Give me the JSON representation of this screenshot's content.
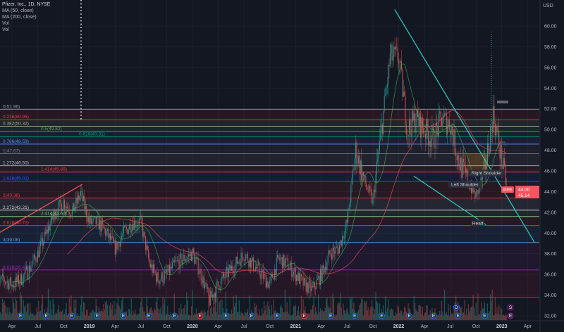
{
  "legend": {
    "symbol": "Pfizer, Inc., 1D, NYSE",
    "ma50": "MA (50, close)",
    "ma200": "MA (200, close)",
    "vol1": "Vol",
    "vol2": "Vol"
  },
  "colors": {
    "background": "#131722",
    "up": "#26a69a",
    "down": "#ef5350",
    "ma50": "#4caf50",
    "ma200": "#e84a5f",
    "trendline": "#2ec4b6",
    "grid": "#1f2433"
  },
  "chart_data": {
    "type": "candlestick",
    "currency": "USD",
    "ylim": [
      31.5,
      62
    ],
    "y_ticks": [
      "60.00",
      "58.00",
      "56.00",
      "54.00",
      "52.00",
      "50.00",
      "48.00",
      "46.00",
      "44.00",
      "42.00",
      "40.00",
      "38.00",
      "36.00",
      "34.00",
      "32.00"
    ],
    "x_ticks": [
      {
        "label": "Apr",
        "date": "2018-04-01"
      },
      {
        "label": "Jul",
        "date": "2018-07-01"
      },
      {
        "label": "Oct",
        "date": "2018-10-01"
      },
      {
        "label": "2019",
        "date": "2019-01-01",
        "bold": true
      },
      {
        "label": "Apr",
        "date": "2019-04-01"
      },
      {
        "label": "Jul",
        "date": "2019-07-01"
      },
      {
        "label": "Oct",
        "date": "2019-10-01"
      },
      {
        "label": "2020",
        "date": "2020-01-01",
        "bold": true
      },
      {
        "label": "Apr",
        "date": "2020-04-01"
      },
      {
        "label": "Jul",
        "date": "2020-07-01"
      },
      {
        "label": "Oct",
        "date": "2020-10-01"
      },
      {
        "label": "2021",
        "date": "2021-01-01",
        "bold": true
      },
      {
        "label": "Apr",
        "date": "2021-04-01"
      },
      {
        "label": "Jul",
        "date": "2021-07-01"
      },
      {
        "label": "Oct",
        "date": "2021-10-01"
      },
      {
        "label": "2022",
        "date": "2022-01-01",
        "bold": true
      },
      {
        "label": "Apr",
        "date": "2022-04-01"
      },
      {
        "label": "Jul",
        "date": "2022-07-01"
      },
      {
        "label": "Oct",
        "date": "2022-10-01"
      },
      {
        "label": "2023",
        "date": "2023-01-01",
        "bold": true
      },
      {
        "label": "Apr",
        "date": "2023-04-01"
      }
    ],
    "monthly_close": [
      [
        "2018-02",
        35
      ],
      [
        "2018-03",
        35.5
      ],
      [
        "2018-04",
        35
      ],
      [
        "2018-05",
        35.5
      ],
      [
        "2018-06",
        36.5
      ],
      [
        "2018-07",
        38
      ],
      [
        "2018-08",
        40
      ],
      [
        "2018-09",
        42
      ],
      [
        "2018-10",
        43
      ],
      [
        "2018-11",
        42
      ],
      [
        "2018-12",
        43.8
      ],
      [
        "2019-01",
        41
      ],
      [
        "2019-02",
        41
      ],
      [
        "2019-03",
        40
      ],
      [
        "2019-04",
        38.5
      ],
      [
        "2019-05",
        40
      ],
      [
        "2019-06",
        41
      ],
      [
        "2019-07",
        41
      ],
      [
        "2019-08",
        37
      ],
      [
        "2019-09",
        35.5
      ],
      [
        "2019-10",
        36
      ],
      [
        "2019-11",
        37
      ],
      [
        "2019-12",
        37.5
      ],
      [
        "2020-01",
        38
      ],
      [
        "2020-02",
        36
      ],
      [
        "2020-03",
        33.5
      ],
      [
        "2020-04",
        35
      ],
      [
        "2020-05",
        36
      ],
      [
        "2020-06",
        37
      ],
      [
        "2020-07",
        38
      ],
      [
        "2020-08",
        37
      ],
      [
        "2020-09",
        36
      ],
      [
        "2020-10",
        35
      ],
      [
        "2020-11",
        37.5
      ],
      [
        "2020-12",
        37
      ],
      [
        "2021-01",
        36
      ],
      [
        "2021-02",
        35
      ],
      [
        "2021-03",
        34.5
      ],
      [
        "2021-04",
        36
      ],
      [
        "2021-05",
        38
      ],
      [
        "2021-06",
        38.5
      ],
      [
        "2021-07",
        41
      ],
      [
        "2021-08",
        48
      ],
      [
        "2021-09",
        45
      ],
      [
        "2021-10",
        43
      ],
      [
        "2021-11",
        50
      ],
      [
        "2021-12",
        57
      ],
      [
        "2022-01",
        57
      ],
      [
        "2022-02",
        50
      ],
      [
        "2022-03",
        51
      ],
      [
        "2022-04",
        50
      ],
      [
        "2022-05",
        49
      ],
      [
        "2022-06",
        51
      ],
      [
        "2022-07",
        50.5
      ],
      [
        "2022-08",
        47
      ],
      [
        "2022-09",
        45
      ],
      [
        "2022-10",
        43.5
      ],
      [
        "2022-11",
        46
      ],
      [
        "2022-12",
        51.5
      ],
      [
        "2023-01",
        47
      ],
      [
        "2023-01-20",
        44
      ]
    ],
    "last_price": {
      "symbol": "PFE",
      "price": "44.00",
      "secondary": "45.14",
      "value": 44.0
    },
    "fibonacci": [
      {
        "label": "0(51.96)",
        "value": 51.96,
        "color": "#9598a1"
      },
      {
        "label": "0.236(50.95)",
        "value": 50.95,
        "color": "#f23645"
      },
      {
        "label": "0.382(50.32)",
        "value": 50.32,
        "color": "#a5b48f"
      },
      {
        "label": "0.5(49.82)",
        "value": 49.82,
        "color": "#4caf50"
      },
      {
        "label": "0.618(49.31)",
        "value": 49.31,
        "color": "#089981"
      },
      {
        "label": "0.786(48.59)",
        "value": 48.59,
        "color": "#4d8ee8"
      },
      {
        "label": "1(47.67)",
        "value": 47.67,
        "color": "#787b86"
      },
      {
        "label": "1.272(46.50)",
        "value": 46.5,
        "color": "#b2b5be"
      },
      {
        "label": "1.414(45.89)",
        "value": 45.89,
        "color": "#f23645"
      },
      {
        "label": "1.618(45.02)",
        "value": 45.02,
        "color": "#2962ff"
      },
      {
        "label": "2(43.38)",
        "value": 43.38,
        "color": "#f23645"
      },
      {
        "label": "2.272(42.21)",
        "value": 42.21,
        "color": "#d1d4dc"
      },
      {
        "label": "2.414(41.60)",
        "value": 41.6,
        "color": "#81c784"
      },
      {
        "label": "2.618(40.72)",
        "value": 40.72,
        "color": "#f23645"
      },
      {
        "label": "3(39.08)",
        "value": 39.08,
        "color": "#5b9cf6"
      },
      {
        "label": "3.618(36.43)",
        "value": 36.43,
        "color": "#9c27b0"
      },
      {
        "label": "",
        "value": 33.78,
        "color": "#e91e63"
      }
    ],
    "trendlines": [
      {
        "from": [
          "2021-12-17",
          61.6
        ],
        "to": [
          "2023-04-25",
          39.1
        ],
        "color": "#2ec4b6"
      },
      {
        "from": [
          "2022-02-24",
          45.5
        ],
        "to": [
          "2022-11-06",
          40.8
        ],
        "color": "#2ec4b6"
      },
      {
        "from": [
          "2018-01-20",
          39.6
        ],
        "to": [
          "2018-12-06",
          44.7
        ],
        "color": "#f7525f"
      }
    ],
    "pattern_labels": [
      {
        "text": "Left Shoulder",
        "date": "2022-08-22",
        "price": 44.7
      },
      {
        "text": "Right Shoulder",
        "date": "2022-11-08",
        "price": 45.8
      },
      {
        "text": "Head",
        "date": "2022-10-07",
        "price": 40.95
      }
    ],
    "events": [
      {
        "label": "E",
        "date": "2018-05-01"
      },
      {
        "label": "E",
        "date": "2018-07-31"
      },
      {
        "label": "E",
        "date": "2018-10-30"
      },
      {
        "label": "E",
        "date": "2019-01-29"
      },
      {
        "label": "E",
        "date": "2019-04-30"
      },
      {
        "label": "E",
        "date": "2019-07-29"
      },
      {
        "label": "E",
        "date": "2019-10-29"
      },
      {
        "label": "E",
        "date": "2020-01-28",
        "neg": true
      },
      {
        "label": "E",
        "date": "2020-04-28"
      },
      {
        "label": "E",
        "date": "2020-07-28"
      },
      {
        "label": "E",
        "date": "2020-10-27"
      },
      {
        "label": "E",
        "date": "2021-02-02",
        "neg": true
      },
      {
        "label": "E",
        "date": "2021-05-04"
      },
      {
        "label": "E",
        "date": "2021-07-28"
      },
      {
        "label": "E",
        "date": "2021-11-02"
      },
      {
        "label": "E",
        "date": "2022-02-08"
      },
      {
        "label": "E",
        "date": "2022-05-03"
      },
      {
        "label": "E",
        "date": "2022-07-28"
      },
      {
        "label": "E",
        "date": "2022-11-01"
      },
      {
        "label": "E",
        "date": "2023-01-31",
        "future": true
      }
    ],
    "dividend": {
      "label": "D",
      "date": "2022-07-22"
    },
    "split": {
      "label": "S",
      "date": "2023-01-31"
    }
  }
}
